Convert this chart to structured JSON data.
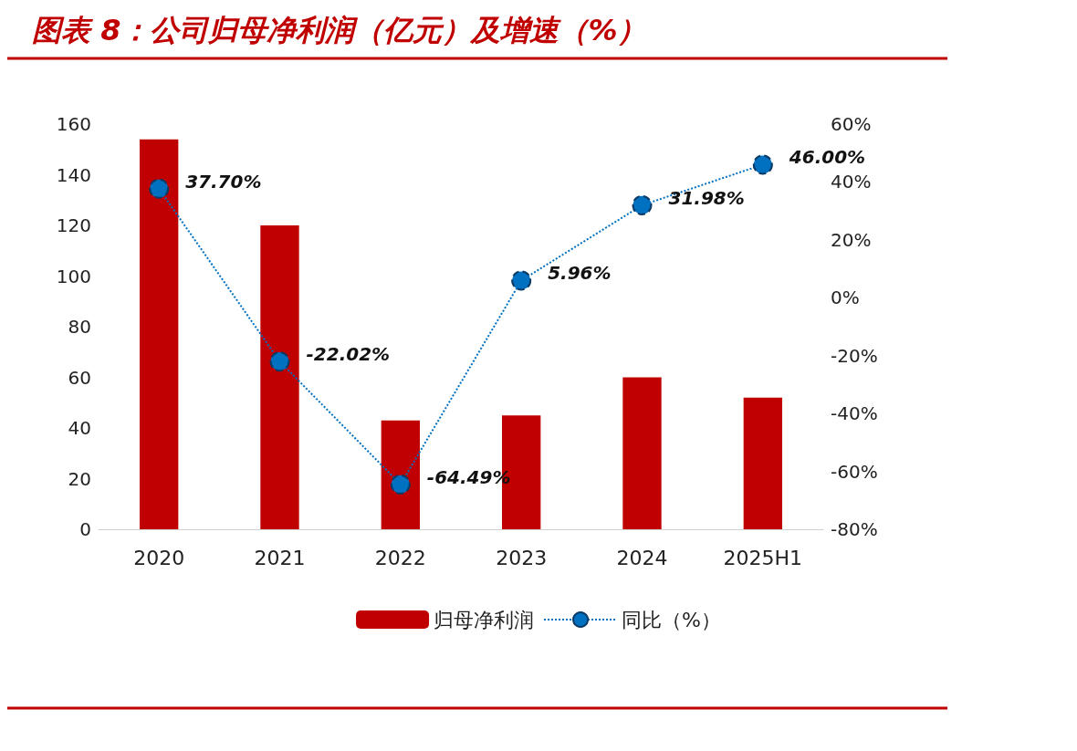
{
  "chart_data": {
    "type": "bar",
    "title": "图表 8：公司归母净利润（亿元）及增速（%）",
    "categories": [
      "2020",
      "2021",
      "2022",
      "2023",
      "2024",
      "2025H1"
    ],
    "series": [
      {
        "name": "归母净利润",
        "color": "#c00000",
        "values": [
          154,
          120,
          43,
          45,
          60,
          52
        ]
      },
      {
        "name": "同比（%）",
        "type": "line",
        "axis": "y2",
        "color": "#0070c0",
        "values": [
          37.7,
          -22.02,
          -64.49,
          5.96,
          31.98,
          46.0
        ],
        "value_labels": [
          "37.70%",
          "-22.02%",
          "-64.49%",
          "5.96%",
          "31.98%",
          "46.00%"
        ],
        "marker": "circle",
        "line_style": "dotted"
      }
    ],
    "ylim": [
      0,
      160
    ],
    "yticks": [
      0,
      20,
      40,
      60,
      80,
      100,
      120,
      140,
      160
    ],
    "y2lim": [
      -80,
      60
    ],
    "y2ticks": [
      {
        "value": -80,
        "label": "-80%"
      },
      {
        "value": -60,
        "label": "-60%"
      },
      {
        "value": -40,
        "label": "-40%"
      },
      {
        "value": -20,
        "label": "-20%"
      },
      {
        "value": 0,
        "label": "0%"
      },
      {
        "value": 20,
        "label": "20%"
      },
      {
        "value": 40,
        "label": "40%"
      },
      {
        "value": 60,
        "label": "60%"
      }
    ],
    "grid": false,
    "legend": "bottom"
  }
}
